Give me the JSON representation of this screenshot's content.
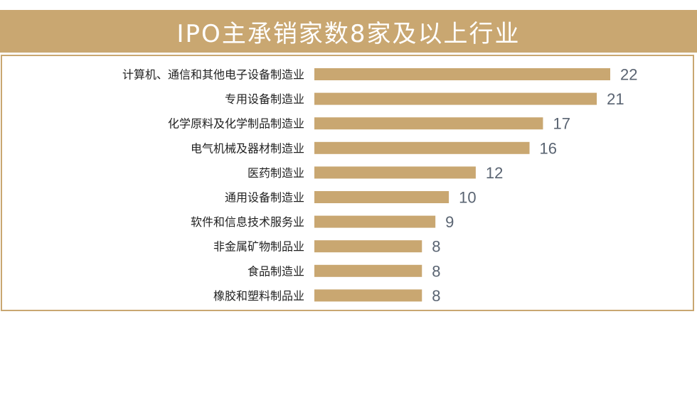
{
  "chart_data": {
    "type": "bar",
    "orientation": "horizontal",
    "title": "IPO主承销家数8家及以上行业",
    "categories": [
      "计算机、通信和其他电子设备制造业",
      "专用设备制造业",
      "化学原料及化学制品制造业",
      "电气机械及器材制造业",
      "医药制造业",
      "通用设备制造业",
      "软件和信息技术服务业",
      "非金属矿物制品业",
      "食品制造业",
      "橡胶和塑料制品业"
    ],
    "values": [
      22,
      21,
      17,
      16,
      12,
      10,
      9,
      8,
      8,
      8
    ],
    "xlim": [
      0,
      22
    ],
    "grid": false,
    "legend": "none",
    "colors": {
      "bar": "#c9a771",
      "header": "#c9a771",
      "value_label": "#5a6472"
    }
  }
}
